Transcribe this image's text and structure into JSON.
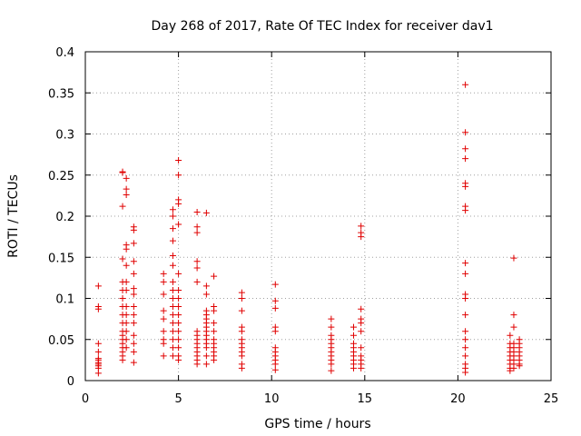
{
  "chart_data": {
    "type": "scatter",
    "title": "Day 268 of 2017, Rate Of TEC Index for receiver dav1",
    "xlabel": "GPS time / hours",
    "ylabel": "ROTI / TECUs",
    "xlim": [
      0,
      25
    ],
    "ylim": [
      0,
      0.4
    ],
    "xticks": [
      0,
      5,
      10,
      15,
      20,
      25
    ],
    "yticks": [
      0,
      0.05,
      0.1,
      0.15,
      0.2,
      0.25,
      0.3,
      0.35,
      0.4
    ],
    "xtick_labels": [
      "0",
      "5",
      "10",
      "15",
      "20",
      "25"
    ],
    "ytick_labels": [
      "0",
      "0.05",
      "0.1",
      "0.15",
      "0.2",
      "0.25",
      "0.3",
      "0.35",
      "0.4"
    ],
    "grid": true,
    "marker": "+",
    "marker_color": "#e00000",
    "series": [
      {
        "name": "ROTI",
        "x": [
          0.7,
          0.7,
          0.7,
          0.7,
          0.7,
          0.7,
          0.7,
          0.7,
          0.7,
          0.7,
          0.7,
          0.7,
          2.0,
          2.0,
          2.0,
          2.0,
          2.0,
          2.0,
          2.0,
          2.0,
          2.0,
          2.0,
          2.0,
          2.0,
          2.0,
          2.0,
          2.0,
          2.0,
          2.0,
          2.0,
          2.2,
          2.2,
          2.2,
          2.2,
          2.2,
          2.2,
          2.2,
          2.2,
          2.2,
          2.2,
          2.2,
          2.2,
          2.2,
          2.2,
          2.6,
          2.6,
          2.6,
          2.6,
          2.6,
          2.6,
          2.6,
          2.6,
          2.6,
          2.6,
          2.6,
          2.6,
          2.6,
          2.6,
          4.2,
          4.2,
          4.2,
          4.2,
          4.2,
          4.2,
          4.2,
          4.2,
          4.2,
          4.7,
          4.7,
          4.7,
          4.7,
          4.7,
          4.7,
          4.7,
          4.7,
          4.7,
          4.7,
          4.7,
          4.7,
          4.7,
          4.7,
          4.7,
          4.7,
          5.0,
          5.0,
          5.0,
          5.0,
          5.0,
          5.0,
          5.0,
          5.0,
          5.0,
          5.0,
          5.0,
          5.0,
          5.0,
          5.0,
          5.0,
          5.0,
          6.0,
          6.0,
          6.0,
          6.0,
          6.0,
          6.0,
          6.0,
          6.0,
          6.0,
          6.0,
          6.0,
          6.0,
          6.0,
          6.0,
          6.0,
          6.5,
          6.5,
          6.5,
          6.5,
          6.5,
          6.5,
          6.5,
          6.5,
          6.5,
          6.5,
          6.5,
          6.5,
          6.5,
          6.5,
          6.5,
          6.9,
          6.9,
          6.9,
          6.9,
          6.9,
          6.9,
          6.9,
          6.9,
          6.9,
          6.9,
          6.9,
          8.4,
          8.4,
          8.4,
          8.4,
          8.4,
          8.4,
          8.4,
          8.4,
          8.4,
          8.4,
          8.4,
          8.4,
          10.2,
          10.2,
          10.2,
          10.2,
          10.2,
          10.2,
          10.2,
          10.2,
          10.2,
          10.2,
          10.2,
          13.2,
          13.2,
          13.2,
          13.2,
          13.2,
          13.2,
          13.2,
          13.2,
          13.2,
          13.2,
          13.2,
          14.4,
          14.4,
          14.4,
          14.4,
          14.4,
          14.4,
          14.4,
          14.4,
          14.4,
          14.8,
          14.8,
          14.8,
          14.8,
          14.8,
          14.8,
          14.8,
          14.8,
          14.8,
          14.8,
          14.8,
          14.8,
          20.4,
          20.4,
          20.4,
          20.4,
          20.4,
          20.4,
          20.4,
          20.4,
          20.4,
          20.4,
          20.4,
          20.4,
          20.4,
          20.4,
          20.4,
          20.4,
          20.4,
          20.4,
          20.4,
          20.4,
          22.8,
          22.8,
          22.8,
          22.8,
          22.8,
          22.8,
          22.8,
          22.8,
          22.8,
          23.0,
          23.0,
          23.0,
          23.0,
          23.0,
          23.0,
          23.0,
          23.0,
          23.0,
          23.0,
          23.3,
          23.3,
          23.3,
          23.3,
          23.3,
          23.3,
          23.3,
          23.3
        ],
        "y": [
          0.115,
          0.09,
          0.087,
          0.045,
          0.035,
          0.027,
          0.025,
          0.022,
          0.02,
          0.018,
          0.015,
          0.009,
          0.254,
          0.253,
          0.212,
          0.148,
          0.12,
          0.11,
          0.1,
          0.09,
          0.08,
          0.07,
          0.06,
          0.055,
          0.05,
          0.045,
          0.04,
          0.035,
          0.03,
          0.025,
          0.246,
          0.233,
          0.226,
          0.165,
          0.16,
          0.14,
          0.12,
          0.11,
          0.09,
          0.08,
          0.07,
          0.06,
          0.05,
          0.04,
          0.187,
          0.183,
          0.167,
          0.145,
          0.13,
          0.112,
          0.105,
          0.09,
          0.08,
          0.07,
          0.055,
          0.045,
          0.035,
          0.022,
          0.13,
          0.12,
          0.105,
          0.085,
          0.075,
          0.06,
          0.05,
          0.045,
          0.03,
          0.208,
          0.2,
          0.185,
          0.17,
          0.152,
          0.14,
          0.12,
          0.11,
          0.1,
          0.09,
          0.08,
          0.07,
          0.06,
          0.05,
          0.04,
          0.03,
          0.268,
          0.25,
          0.22,
          0.215,
          0.19,
          0.13,
          0.11,
          0.1,
          0.09,
          0.08,
          0.07,
          0.06,
          0.05,
          0.04,
          0.03,
          0.025,
          0.205,
          0.187,
          0.18,
          0.145,
          0.137,
          0.12,
          0.06,
          0.055,
          0.05,
          0.045,
          0.04,
          0.035,
          0.03,
          0.025,
          0.02,
          0.204,
          0.115,
          0.105,
          0.085,
          0.08,
          0.075,
          0.07,
          0.065,
          0.06,
          0.055,
          0.05,
          0.045,
          0.04,
          0.03,
          0.02,
          0.127,
          0.09,
          0.085,
          0.07,
          0.06,
          0.05,
          0.045,
          0.04,
          0.035,
          0.03,
          0.025,
          0.107,
          0.1,
          0.085,
          0.065,
          0.06,
          0.05,
          0.045,
          0.04,
          0.035,
          0.03,
          0.02,
          0.015,
          0.117,
          0.097,
          0.088,
          0.065,
          0.06,
          0.04,
          0.035,
          0.03,
          0.025,
          0.02,
          0.013,
          0.075,
          0.065,
          0.055,
          0.05,
          0.045,
          0.04,
          0.035,
          0.03,
          0.025,
          0.02,
          0.012,
          0.065,
          0.055,
          0.045,
          0.04,
          0.035,
          0.03,
          0.025,
          0.02,
          0.015,
          0.188,
          0.18,
          0.175,
          0.087,
          0.075,
          0.07,
          0.06,
          0.04,
          0.03,
          0.025,
          0.02,
          0.015,
          0.36,
          0.302,
          0.282,
          0.27,
          0.24,
          0.236,
          0.212,
          0.207,
          0.143,
          0.13,
          0.105,
          0.1,
          0.08,
          0.06,
          0.05,
          0.04,
          0.03,
          0.02,
          0.015,
          0.01,
          0.055,
          0.045,
          0.04,
          0.035,
          0.03,
          0.025,
          0.02,
          0.015,
          0.012,
          0.149,
          0.08,
          0.065,
          0.045,
          0.04,
          0.035,
          0.03,
          0.025,
          0.02,
          0.015,
          0.05,
          0.045,
          0.04,
          0.035,
          0.03,
          0.025,
          0.02,
          0.018
        ]
      }
    ]
  }
}
